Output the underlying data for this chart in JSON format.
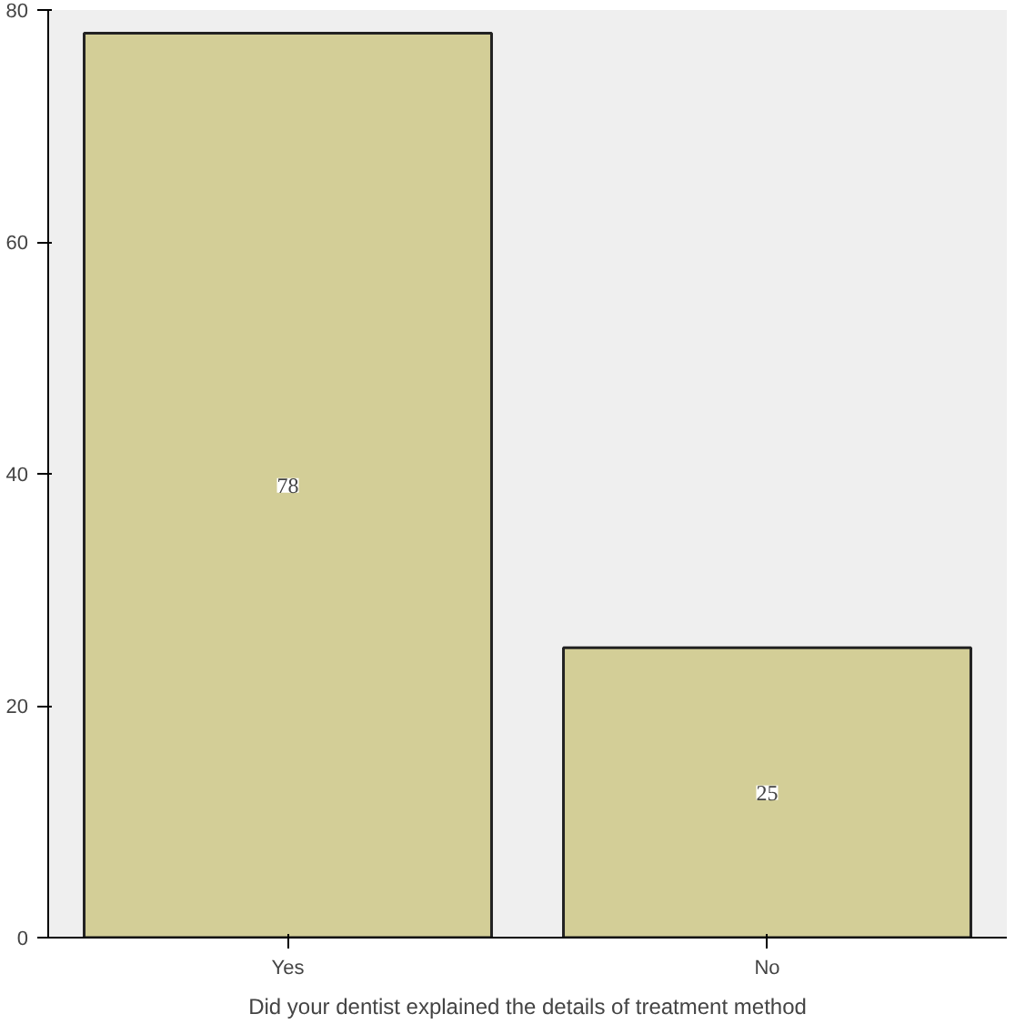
{
  "chart_data": {
    "type": "bar",
    "xlabel": "Did your dentist explained the details of treatment method",
    "categories": [
      "Yes",
      "No"
    ],
    "values": [
      78,
      25
    ],
    "color": "#d3ce97",
    "ylim": [
      0,
      80
    ],
    "yticks": [
      0,
      20,
      40,
      60,
      80
    ],
    "grid": false,
    "data_labels": true
  }
}
